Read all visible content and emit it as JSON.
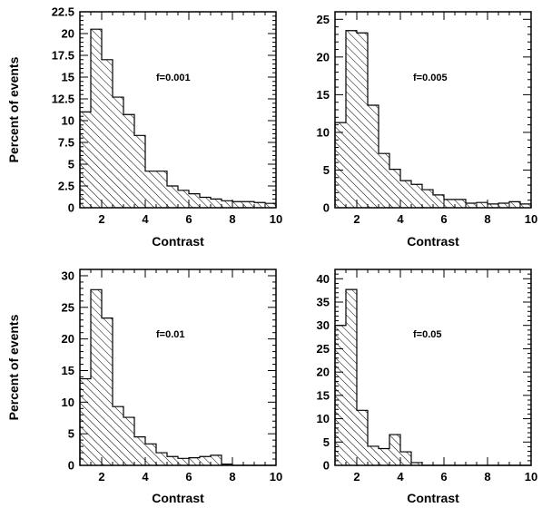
{
  "chart_data": [
    {
      "type": "bar",
      "annotation": "f=0.001",
      "xlabel": "Contrast",
      "ylabel": "Percent of events",
      "xlim": [
        1,
        10
      ],
      "ylim": [
        0,
        22.5
      ],
      "x_ticks": [
        2,
        4,
        6,
        8,
        10
      ],
      "x_tick_labels": [
        "2",
        "4",
        "6",
        "8",
        "10"
      ],
      "y_ticks": [
        0,
        2.5,
        5,
        7.5,
        10,
        12.5,
        15,
        17.5,
        20,
        22.5
      ],
      "y_tick_labels": [
        "0",
        "2.5",
        "5",
        "7.5",
        "10",
        "12.5",
        "15",
        "17.5",
        "20",
        "22.5"
      ],
      "bin_edges": [
        1.0,
        1.5,
        2.0,
        2.5,
        3.0,
        3.5,
        4.0,
        4.5,
        5.0,
        5.5,
        6.0,
        6.5,
        7.0,
        7.5,
        8.0,
        8.5,
        9.0,
        9.5,
        10.0
      ],
      "values": [
        11.0,
        20.5,
        17.0,
        12.7,
        10.7,
        8.3,
        4.2,
        4.2,
        2.5,
        2.0,
        1.6,
        1.2,
        1.0,
        0.8,
        0.7,
        0.7,
        0.6,
        0.5
      ],
      "fill": "hatched"
    },
    {
      "type": "bar",
      "annotation": "f=0.005",
      "xlabel": "Contrast",
      "ylabel": "",
      "xlim": [
        1,
        10
      ],
      "ylim": [
        0,
        26
      ],
      "x_ticks": [
        2,
        4,
        6,
        8,
        10
      ],
      "x_tick_labels": [
        "2",
        "4",
        "6",
        "8",
        "10"
      ],
      "y_ticks": [
        0,
        5,
        10,
        15,
        20,
        25
      ],
      "y_tick_labels": [
        "0",
        "5",
        "10",
        "15",
        "20",
        "25"
      ],
      "bin_edges": [
        1.0,
        1.5,
        2.0,
        2.5,
        3.0,
        3.5,
        4.0,
        4.5,
        5.0,
        5.5,
        6.0,
        6.5,
        7.0,
        7.5,
        8.0,
        8.5,
        9.0,
        9.5,
        10.0
      ],
      "values": [
        11.3,
        23.5,
        23.2,
        13.6,
        7.2,
        5.1,
        3.6,
        3.1,
        2.4,
        1.7,
        1.1,
        1.1,
        0.6,
        0.7,
        0.5,
        0.6,
        0.8,
        0.5
      ],
      "fill": "hatched"
    },
    {
      "type": "bar",
      "annotation": "f=0.01",
      "xlabel": "Contrast",
      "ylabel": "Percent of events",
      "xlim": [
        1,
        10
      ],
      "ylim": [
        0,
        31
      ],
      "x_ticks": [
        2,
        4,
        6,
        8,
        10
      ],
      "x_tick_labels": [
        "2",
        "4",
        "6",
        "8",
        "10"
      ],
      "y_ticks": [
        0,
        5,
        10,
        15,
        20,
        25,
        30
      ],
      "y_tick_labels": [
        "0",
        "5",
        "10",
        "15",
        "20",
        "25",
        "30"
      ],
      "bin_edges": [
        1.0,
        1.5,
        2.0,
        2.5,
        3.0,
        3.5,
        4.0,
        4.5,
        5.0,
        5.5,
        6.0,
        6.5,
        7.0,
        7.5,
        8.0,
        8.5,
        9.0,
        9.5,
        10.0
      ],
      "values": [
        13.7,
        27.8,
        23.3,
        9.3,
        7.6,
        4.5,
        3.4,
        2.0,
        1.4,
        1.1,
        1.2,
        1.4,
        1.6,
        0.2,
        0.0,
        0.0,
        0.0,
        0.0
      ],
      "fill": "hatched"
    },
    {
      "type": "bar",
      "annotation": "f=0.05",
      "xlabel": "Contrast",
      "ylabel": "",
      "xlim": [
        1,
        10
      ],
      "ylim": [
        0,
        42
      ],
      "x_ticks": [
        2,
        4,
        6,
        8,
        10
      ],
      "x_tick_labels": [
        "2",
        "4",
        "6",
        "8",
        "10"
      ],
      "y_ticks": [
        0,
        5,
        10,
        15,
        20,
        25,
        30,
        35,
        40
      ],
      "y_tick_labels": [
        "0",
        "5",
        "10",
        "15",
        "20",
        "25",
        "30",
        "35",
        "40"
      ],
      "bin_edges": [
        1.0,
        1.5,
        2.0,
        2.5,
        3.0,
        3.5,
        4.0,
        4.5,
        5.0,
        5.5,
        6.0,
        6.5,
        7.0,
        7.5,
        8.0,
        8.5,
        9.0,
        9.5,
        10.0
      ],
      "values": [
        30.0,
        37.7,
        11.8,
        4.1,
        3.6,
        6.6,
        2.9,
        0.6,
        0.0,
        0.0,
        0.0,
        0.0,
        0.0,
        0.0,
        0.0,
        0.0,
        0.0,
        0.0
      ],
      "fill": "hatched"
    }
  ]
}
